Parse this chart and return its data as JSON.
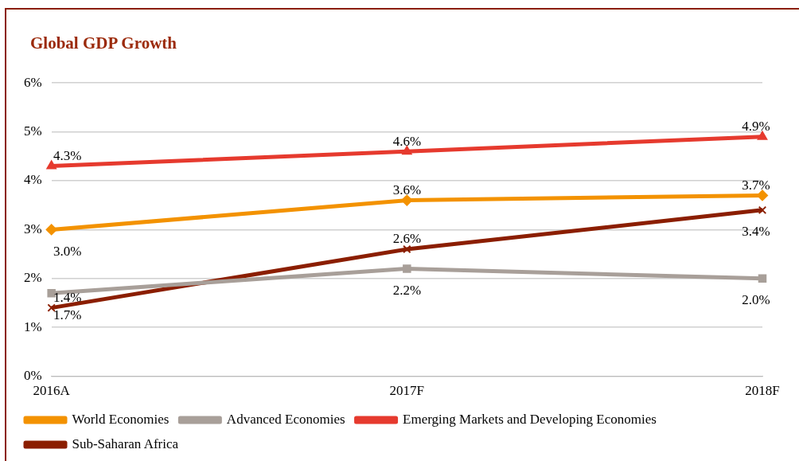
{
  "chart_data": {
    "type": "line",
    "title": "Global GDP Growth",
    "categories": [
      "2016A",
      "2017F",
      "2018F"
    ],
    "series": [
      {
        "name": "World Economies",
        "color": "#f39200",
        "marker": "diamond",
        "values": [
          3.0,
          3.6,
          3.7
        ]
      },
      {
        "name": "Advanced Economies",
        "color": "#a89f99",
        "marker": "square",
        "values": [
          1.7,
          2.2,
          2.0
        ]
      },
      {
        "name": "Emerging Markets and Developing Economies",
        "color": "#e63a2e",
        "marker": "triangle",
        "values": [
          4.3,
          4.6,
          4.9
        ]
      },
      {
        "name": "Sub-Saharan Africa",
        "color": "#8b1e00",
        "marker": "cross",
        "values": [
          1.4,
          2.6,
          3.4
        ]
      }
    ],
    "ylim": [
      0,
      6
    ],
    "yticks": [
      {
        "value": 0,
        "label": "0%"
      },
      {
        "value": 1,
        "label": "1%"
      },
      {
        "value": 2,
        "label": "2%"
      },
      {
        "value": 3,
        "label": "3%"
      },
      {
        "value": 4,
        "label": "4%"
      },
      {
        "value": 5,
        "label": "5%"
      },
      {
        "value": 6,
        "label": "6%"
      }
    ],
    "value_labels": [
      [
        "3.0%",
        "3.6%",
        "3.7%"
      ],
      [
        "1.7%",
        "2.2%",
        "2.0%"
      ],
      [
        "4.3%",
        "4.6%",
        "4.9%"
      ],
      [
        "1.4%",
        "2.6%",
        "3.4%"
      ]
    ],
    "grid": "y",
    "legend": "bottom",
    "line_style": "solid"
  }
}
